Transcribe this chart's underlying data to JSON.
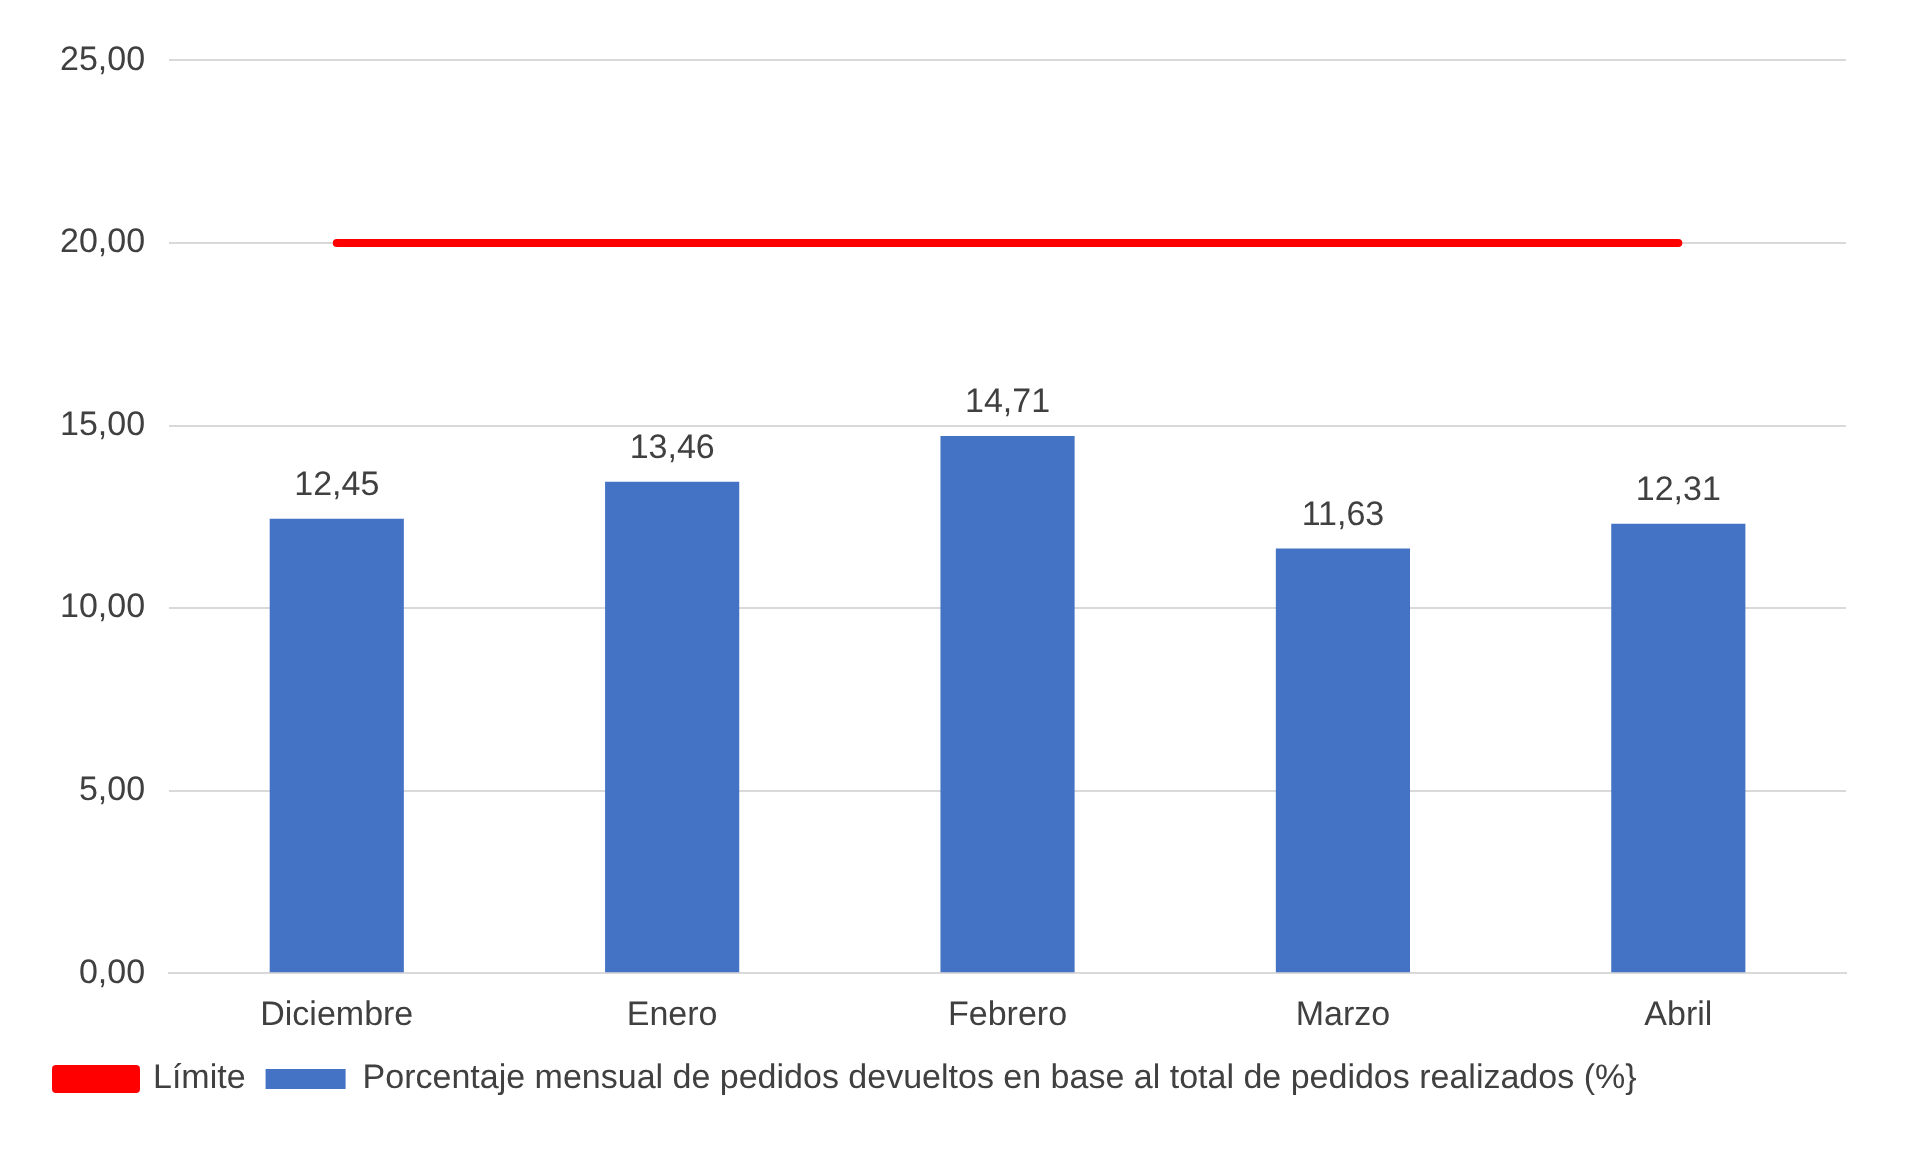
{
  "chart_data": {
    "type": "bar",
    "categories": [
      "Diciembre",
      "Enero",
      "Febrero",
      "Marzo",
      "Abril"
    ],
    "series": [
      {
        "name": "Porcentaje mensual de pedidos devueltos en base al total de pedidos realizados (%}",
        "color": "#4472c4",
        "values": [
          12.45,
          13.46,
          14.71,
          11.63,
          12.31
        ],
        "value_labels": [
          "12,45",
          "13,46",
          "14,71",
          "11,63",
          "12,31"
        ]
      },
      {
        "name": "Límite",
        "type": "line",
        "color": "#ff0000",
        "values": [
          20,
          20,
          20,
          20,
          20
        ]
      }
    ],
    "ylim": [
      0,
      25
    ],
    "yticks": [
      {
        "value": 0,
        "label": "0,00"
      },
      {
        "value": 5,
        "label": "5,00"
      },
      {
        "value": 10,
        "label": "10,00"
      },
      {
        "value": 15,
        "label": "15,00"
      },
      {
        "value": 20,
        "label": "20,00"
      },
      {
        "value": 25,
        "label": "25,00"
      }
    ],
    "grid": "y",
    "legend": "bottom",
    "marker": "none"
  }
}
